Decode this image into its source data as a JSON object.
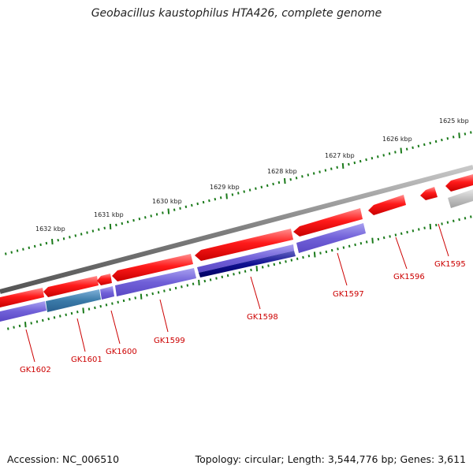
{
  "title": "Geobacillus kaustophilus HTA426, complete genome",
  "footer": {
    "accession": "Accession: NC_006510",
    "summary": "Topology: circular; Length: 3,544,776 bp; Genes: 3,611"
  },
  "scale": {
    "labels": [
      "1632 kbp",
      "1631 kbp",
      "1630 kbp",
      "1629 kbp",
      "1628 kbp",
      "1627 kbp",
      "1626 kbp",
      "1625 kbp"
    ],
    "tick_color": "#1a7a1a"
  },
  "colors": {
    "forward_gene": "#ff1a1a",
    "reverse_gene": "#7060d8",
    "highlight_gene": "#0a0a80",
    "teal_gene": "#3a7aa8",
    "pseudo_gene": "#b8b8b8",
    "backbone": "#808080",
    "label": "#cc0000"
  },
  "genes": [
    {
      "name": "GK1602"
    },
    {
      "name": "GK1601"
    },
    {
      "name": "GK1600"
    },
    {
      "name": "GK1599"
    },
    {
      "name": "GK1598"
    },
    {
      "name": "GK1597"
    },
    {
      "name": "GK1596"
    },
    {
      "name": "GK1595"
    }
  ]
}
